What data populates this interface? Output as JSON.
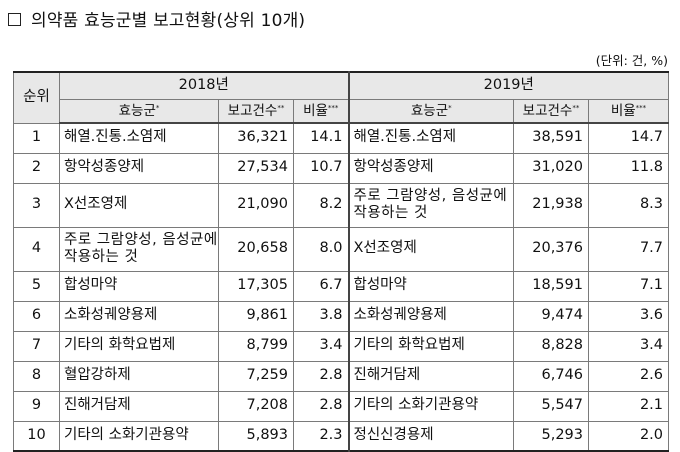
{
  "title": "의약품 효능군별 보고현황(상위 10개)",
  "unit": "(단위: 건, %)",
  "header": {
    "rank": "순위",
    "year_2018": "2018년",
    "year_2019": "2019년",
    "efficacy": "효능군",
    "count": "보고건수",
    "ratio": "비율",
    "mark1": "*",
    "mark2": "**",
    "mark3": "***"
  },
  "rows": [
    {
      "rank": "1",
      "n18": "해열.진통.소염제",
      "c18": "36,321",
      "r18": "14.1",
      "n19": "해열.진통.소염제",
      "c19": "38,591",
      "r19": "14.7"
    },
    {
      "rank": "2",
      "n18": "항악성종양제",
      "c18": "27,534",
      "r18": "10.7",
      "n19": "항악성종양제",
      "c19": "31,020",
      "r19": "11.8"
    },
    {
      "rank": "3",
      "n18": "X선조영제",
      "c18": "21,090",
      "r18": "8.2",
      "n19": "주로 그람양성, 음성균에 작용하는 것",
      "c19": "21,938",
      "r19": "8.3"
    },
    {
      "rank": "4",
      "n18": "주로 그람양성, 음성균에 작용하는 것",
      "c18": "20,658",
      "r18": "8.0",
      "n19": "X선조영제",
      "c19": "20,376",
      "r19": "7.7"
    },
    {
      "rank": "5",
      "n18": "합성마약",
      "c18": "17,305",
      "r18": "6.7",
      "n19": "합성마약",
      "c19": "18,591",
      "r19": "7.1"
    },
    {
      "rank": "6",
      "n18": "소화성궤양용제",
      "c18": "9,861",
      "r18": "3.8",
      "n19": "소화성궤양용제",
      "c19": "9,474",
      "r19": "3.6"
    },
    {
      "rank": "7",
      "n18": "기타의 화학요법제",
      "c18": "8,799",
      "r18": "3.4",
      "n19": "기타의 화학요법제",
      "c19": "8,828",
      "r19": "3.4"
    },
    {
      "rank": "8",
      "n18": "혈압강하제",
      "c18": "7,259",
      "r18": "2.8",
      "n19": "진해거담제",
      "c19": "6,746",
      "r19": "2.6"
    },
    {
      "rank": "9",
      "n18": "진해거담제",
      "c18": "7,208",
      "r18": "2.8",
      "n19": "기타의 소화기관용약",
      "c19": "5,547",
      "r19": "2.1"
    },
    {
      "rank": "10",
      "n18": "기타의 소화기관용약",
      "c18": "5,893",
      "r18": "2.3",
      "n19": "정신신경용제",
      "c19": "5,293",
      "r19": "2.0"
    }
  ]
}
